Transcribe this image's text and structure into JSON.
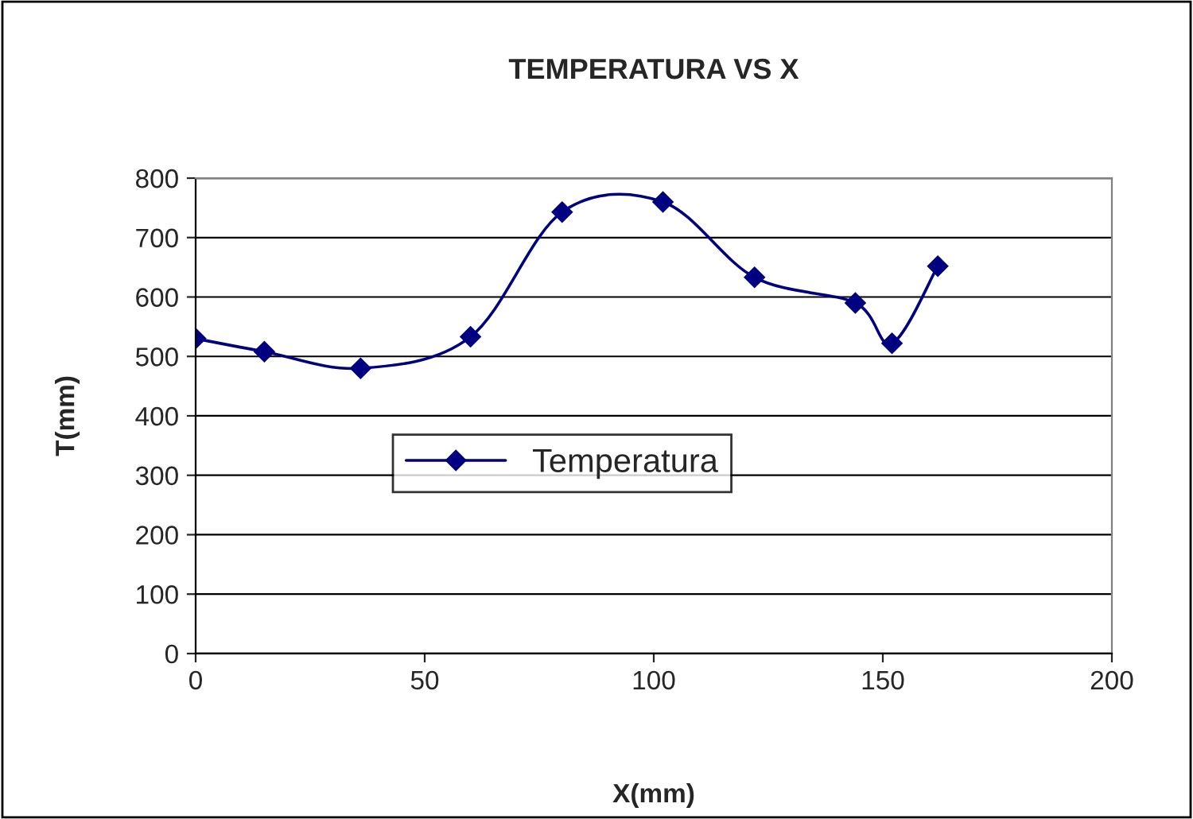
{
  "chart_data": {
    "type": "line",
    "title": "TEMPERATURA VS X",
    "xlabel": "X(mm)",
    "ylabel": "T(mm)",
    "series": [
      {
        "name": "Temperatura",
        "color": "#000080",
        "x": [
          0,
          15,
          36,
          60,
          80,
          102,
          122,
          144,
          152,
          162
        ],
        "values": [
          530,
          508,
          480,
          533,
          743,
          760,
          633,
          590,
          522,
          652
        ]
      }
    ],
    "xlim": [
      0,
      200
    ],
    "xticks": [
      0,
      50,
      100,
      150,
      200
    ],
    "ylim": [
      0,
      800
    ],
    "yticks": [
      0,
      100,
      200,
      300,
      400,
      500,
      600,
      700,
      800
    ],
    "grid": "y",
    "legend": "center",
    "marker": "diamond",
    "line_style": "solid"
  }
}
